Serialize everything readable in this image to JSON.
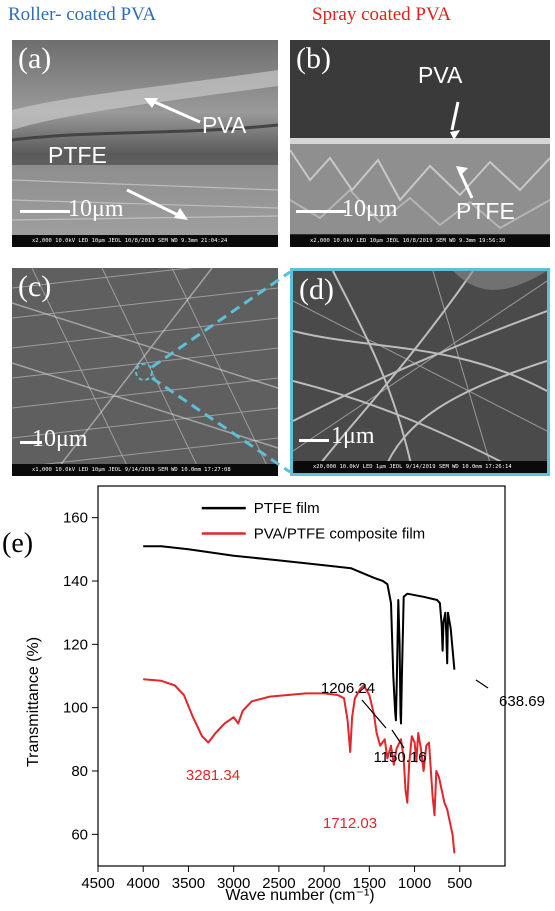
{
  "figure": {
    "header_left": "Roller- coated PVA",
    "header_right": "Spray coated PVA",
    "panels": {
      "a": {
        "letter": "(a)",
        "labels": [
          "PVA",
          "PTFE"
        ],
        "scale_bar": "10μm",
        "info": "x2,000    10.0kV LED    10μm  JEOL   10/8/2019    SEM   WD 9.3mm  21:04:24"
      },
      "b": {
        "letter": "(b)",
        "labels": [
          "PVA",
          "PTFE"
        ],
        "scale_bar": "10μm",
        "info": "x2,000    10.0kV LED    10μm  JEOL   10/8/2019    SEM   WD 9.3mm  19:56:30"
      },
      "c": {
        "letter": "(c)",
        "scale_bar": "10μm",
        "info": "x1,000    10.0kV LED    10μm  JEOL   9/14/2019    SEM   WD 10.0mm  17:27:08"
      },
      "d": {
        "letter": "(d)",
        "scale_bar": "1μm",
        "info": "x20,000   10.0kV LED    1μm  JEOL   9/14/2019    SEM   WD 10.0mm  17:26:14"
      }
    },
    "colors": {
      "blue_header": "#2f6db5",
      "red_header": "#e0231c",
      "zoom_box": "#5bc0d8",
      "ptfe_line": "#000000",
      "pva_line": "#e3262b"
    }
  },
  "chart_data": {
    "type": "line",
    "panel_letter": "(e)",
    "xlabel": "Wave number (cm⁻¹)",
    "ylabel": "Transmittance (%)",
    "xlim": [
      4500,
      0
    ],
    "x_ticks": [
      4500,
      4000,
      3500,
      3000,
      2500,
      2000,
      1500,
      1000,
      500
    ],
    "ylim": [
      50,
      170
    ],
    "y_ticks": [
      60,
      80,
      100,
      120,
      140,
      160
    ],
    "legend_position": "top-right",
    "series": [
      {
        "name": "PTFE film",
        "color": "#000000",
        "points": [
          [
            4000,
            151
          ],
          [
            3800,
            151
          ],
          [
            3500,
            150
          ],
          [
            3000,
            148
          ],
          [
            2500,
            146.5
          ],
          [
            2000,
            145
          ],
          [
            1700,
            144
          ],
          [
            1450,
            141
          ],
          [
            1350,
            140
          ],
          [
            1300,
            139
          ],
          [
            1260,
            133
          ],
          [
            1235,
            110
          ],
          [
            1215,
            99
          ],
          [
            1206,
            96
          ],
          [
            1195,
            110
          ],
          [
            1180,
            134
          ],
          [
            1165,
            120
          ],
          [
            1155,
            98
          ],
          [
            1150,
            95
          ],
          [
            1140,
            110
          ],
          [
            1120,
            135
          ],
          [
            1080,
            136
          ],
          [
            900,
            135
          ],
          [
            750,
            134
          ],
          [
            720,
            133
          ],
          [
            700,
            126
          ],
          [
            690,
            118
          ],
          [
            680,
            127
          ],
          [
            660,
            130
          ],
          [
            650,
            124
          ],
          [
            639,
            114
          ],
          [
            630,
            130
          ],
          [
            600,
            125
          ],
          [
            560,
            112
          ]
        ]
      },
      {
        "name": "PVA/PTFE composite film",
        "color": "#e3262b",
        "points": [
          [
            4000,
            109
          ],
          [
            3800,
            108.5
          ],
          [
            3650,
            107
          ],
          [
            3550,
            104
          ],
          [
            3450,
            97
          ],
          [
            3350,
            91
          ],
          [
            3281,
            89
          ],
          [
            3200,
            92
          ],
          [
            3100,
            95
          ],
          [
            3000,
            97
          ],
          [
            2950,
            95
          ],
          [
            2900,
            99
          ],
          [
            2800,
            102
          ],
          [
            2600,
            103.5
          ],
          [
            2400,
            104
          ],
          [
            2200,
            104.5
          ],
          [
            2000,
            104.5
          ],
          [
            1850,
            104
          ],
          [
            1780,
            103
          ],
          [
            1740,
            96
          ],
          [
            1712,
            86
          ],
          [
            1690,
            97
          ],
          [
            1660,
            103
          ],
          [
            1600,
            106
          ],
          [
            1560,
            107
          ],
          [
            1500,
            104
          ],
          [
            1450,
            98
          ],
          [
            1420,
            92
          ],
          [
            1380,
            88
          ],
          [
            1330,
            90
          ],
          [
            1300,
            84
          ],
          [
            1260,
            88
          ],
          [
            1230,
            82
          ],
          [
            1200,
            87
          ],
          [
            1150,
            90
          ],
          [
            1120,
            84
          ],
          [
            1100,
            74
          ],
          [
            1080,
            70
          ],
          [
            1060,
            82
          ],
          [
            1030,
            91
          ],
          [
            1000,
            89
          ],
          [
            980,
            83
          ],
          [
            960,
            92
          ],
          [
            930,
            87
          ],
          [
            900,
            80
          ],
          [
            870,
            88
          ],
          [
            840,
            89
          ],
          [
            800,
            72
          ],
          [
            780,
            66
          ],
          [
            760,
            80
          ],
          [
            730,
            78
          ],
          [
            700,
            74
          ],
          [
            670,
            70
          ],
          [
            640,
            68
          ],
          [
            610,
            64
          ],
          [
            580,
            60
          ],
          [
            560,
            54
          ]
        ]
      }
    ],
    "annotations": [
      {
        "text": "1206.24",
        "color": "#000000"
      },
      {
        "text": "1150.16",
        "color": "#000000"
      },
      {
        "text": "638.69",
        "color": "#000000"
      },
      {
        "text": "3281.34",
        "color": "#e3262b"
      },
      {
        "text": "1712.03",
        "color": "#e3262b"
      }
    ]
  }
}
